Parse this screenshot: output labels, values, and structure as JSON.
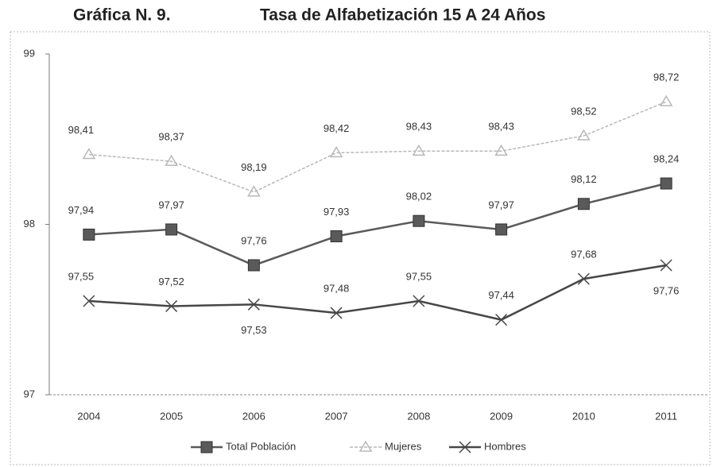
{
  "chart_data": {
    "type": "line",
    "title": "Gráfica N. 9.",
    "subtitle": "Tasa de Alfabetización 15 A 24 Años",
    "categories": [
      "2004",
      "2005",
      "2006",
      "2007",
      "2008",
      "2009",
      "2010",
      "2011"
    ],
    "series": [
      {
        "name": "Total Población",
        "color": "#5a5a5a",
        "marker": "square",
        "values": [
          97.94,
          97.97,
          97.76,
          97.93,
          98.02,
          97.97,
          98.12,
          98.24
        ],
        "value_labels": [
          "97,94",
          "97,97",
          "97,76",
          "97,93",
          "98,02",
          "97,97",
          "98,12",
          "98,24"
        ]
      },
      {
        "name": "Mujeres",
        "color": "#b8b8b8",
        "marker": "triangle",
        "values": [
          98.41,
          98.37,
          98.19,
          98.42,
          98.43,
          98.43,
          98.52,
          98.72
        ],
        "value_labels": [
          "98,41",
          "98,37",
          "98,19",
          "98,42",
          "98,43",
          "98,43",
          "98,52",
          "98,72"
        ]
      },
      {
        "name": "Hombres",
        "color": "#474747",
        "marker": "x",
        "values": [
          97.55,
          97.52,
          97.53,
          97.48,
          97.55,
          97.44,
          97.68,
          97.76
        ],
        "value_labels": [
          "97,55",
          "97,52",
          "97,53",
          "97,48",
          "97,55",
          "97,44",
          "97,68",
          "97,76"
        ]
      }
    ],
    "ylim": [
      97,
      99
    ],
    "yticks": [
      97,
      98,
      99
    ],
    "legend": "bottom"
  }
}
